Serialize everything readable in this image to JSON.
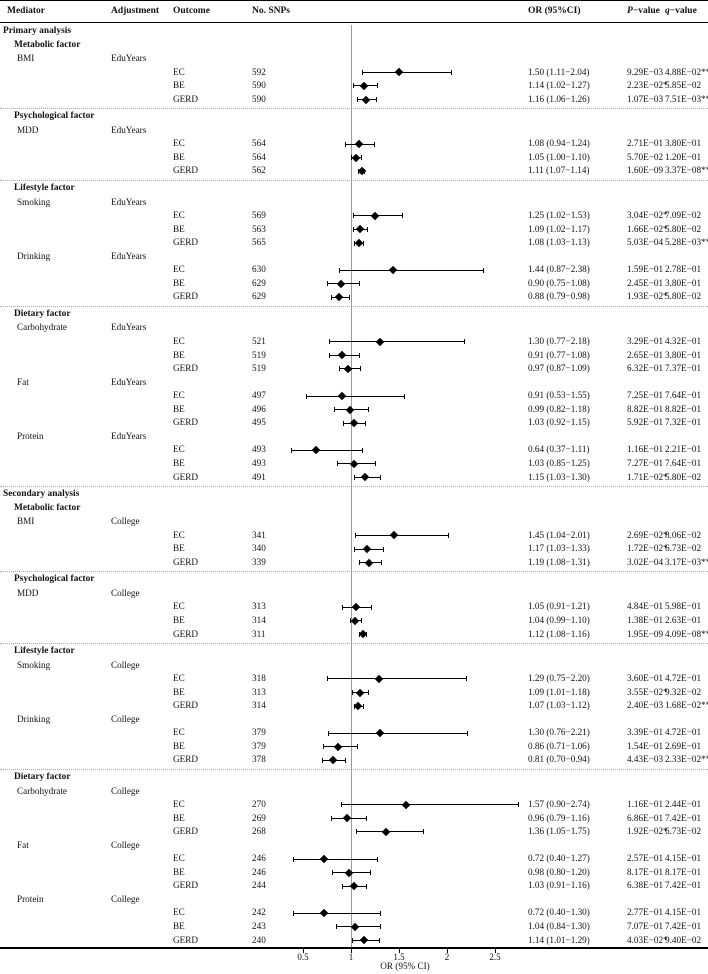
{
  "header": {
    "mediator": "Mediator",
    "adjustment": "Adjustment",
    "outcome": "Outcome",
    "snps": "No. SNPs",
    "or": "OR (95%CI)",
    "p_italic": "P",
    "p_rest": "−value",
    "q_italic": "q",
    "q_rest": "−value"
  },
  "chart_data": {
    "type": "forest",
    "xlabel": "OR (95% CI)",
    "x_ticks": [
      0.5,
      1,
      1.5,
      2,
      2.5
    ],
    "x_tick_labels": [
      "0.5",
      "1",
      "1.5",
      "2",
      "2.5"
    ],
    "xlim": [
      0.3,
      3.0
    ],
    "reference_line": 1,
    "rows": [
      {
        "type": "section",
        "label": "Primary analysis"
      },
      {
        "type": "factor",
        "label": "Metabolic factor"
      },
      {
        "type": "mediator",
        "label": "BMI",
        "adjustment": "EduYears"
      },
      {
        "type": "data",
        "outcome": "EC",
        "snps": "592",
        "est": 1.5,
        "lo": 1.11,
        "hi": 2.04,
        "or_text": "1.50 (1.11−2.04)",
        "p": "9.29E−03",
        "q": "4.88E−02**"
      },
      {
        "type": "data",
        "outcome": "BE",
        "snps": "590",
        "est": 1.14,
        "lo": 1.02,
        "hi": 1.27,
        "or_text": "1.14 (1.02−1.27)",
        "p": "2.23E−02*",
        "q": "5.85E−02"
      },
      {
        "type": "data",
        "outcome": "GERD",
        "snps": "590",
        "est": 1.16,
        "lo": 1.06,
        "hi": 1.26,
        "or_text": "1.16 (1.06−1.26)",
        "p": "1.07E−03",
        "q": "7.51E−03**"
      },
      {
        "type": "sep"
      },
      {
        "type": "factor",
        "label": "Psychological factor"
      },
      {
        "type": "mediator",
        "label": "MDD",
        "adjustment": "EduYears"
      },
      {
        "type": "data",
        "outcome": "EC",
        "snps": "564",
        "est": 1.08,
        "lo": 0.94,
        "hi": 1.24,
        "or_text": "1.08 (0.94−1.24)",
        "p": "2.71E−01",
        "q": "3.80E−01"
      },
      {
        "type": "data",
        "outcome": "BE",
        "snps": "564",
        "est": 1.05,
        "lo": 1.0,
        "hi": 1.1,
        "or_text": "1.05 (1.00−1.10)",
        "p": "5.70E−02",
        "q": "1.20E−01"
      },
      {
        "type": "data",
        "outcome": "GERD",
        "snps": "562",
        "est": 1.11,
        "lo": 1.07,
        "hi": 1.14,
        "or_text": "1.11 (1.07−1.14)",
        "p": "1.60E−09",
        "q": "3.37E−08**"
      },
      {
        "type": "sep"
      },
      {
        "type": "factor",
        "label": "Lifestyle factor"
      },
      {
        "type": "mediator",
        "label": "Smoking",
        "adjustment": "EduYears"
      },
      {
        "type": "data",
        "outcome": "EC",
        "snps": "569",
        "est": 1.25,
        "lo": 1.02,
        "hi": 1.53,
        "or_text": "1.25 (1.02−1.53)",
        "p": "3.04E−02*",
        "q": "7.09E−02"
      },
      {
        "type": "data",
        "outcome": "BE",
        "snps": "563",
        "est": 1.09,
        "lo": 1.02,
        "hi": 1.17,
        "or_text": "1.09 (1.02−1.17)",
        "p": "1.66E−02*",
        "q": "5.80E−02"
      },
      {
        "type": "data",
        "outcome": "GERD",
        "snps": "565",
        "est": 1.08,
        "lo": 1.03,
        "hi": 1.13,
        "or_text": "1.08 (1.03−1.13)",
        "p": "5.03E−04",
        "q": "5.28E−03**"
      },
      {
        "type": "mediator",
        "label": "Drinking",
        "adjustment": "EduYears"
      },
      {
        "type": "data",
        "outcome": "EC",
        "snps": "630",
        "est": 1.44,
        "lo": 0.87,
        "hi": 2.38,
        "or_text": "1.44 (0.87−2.38)",
        "p": "1.59E−01",
        "q": "2.78E−01"
      },
      {
        "type": "data",
        "outcome": "BE",
        "snps": "629",
        "est": 0.9,
        "lo": 0.75,
        "hi": 1.08,
        "or_text": "0.90 (0.75−1.08)",
        "p": "2.45E−01",
        "q": "3.80E−01"
      },
      {
        "type": "data",
        "outcome": "GERD",
        "snps": "629",
        "est": 0.88,
        "lo": 0.79,
        "hi": 0.98,
        "or_text": "0.88 (0.79−0.98)",
        "p": "1.93E−02*",
        "q": "5.80E−02"
      },
      {
        "type": "sep"
      },
      {
        "type": "factor",
        "label": "Dietary factor"
      },
      {
        "type": "mediator",
        "label": "Carbohydrate",
        "adjustment": "EduYears"
      },
      {
        "type": "data",
        "outcome": "EC",
        "snps": "521",
        "est": 1.3,
        "lo": 0.77,
        "hi": 2.18,
        "or_text": "1.30 (0.77−2.18)",
        "p": "3.29E−01",
        "q": "4.32E−01"
      },
      {
        "type": "data",
        "outcome": "BE",
        "snps": "519",
        "est": 0.91,
        "lo": 0.77,
        "hi": 1.08,
        "or_text": "0.91 (0.77−1.08)",
        "p": "2.65E−01",
        "q": "3.80E−01"
      },
      {
        "type": "data",
        "outcome": "GERD",
        "snps": "519",
        "est": 0.97,
        "lo": 0.87,
        "hi": 1.09,
        "or_text": "0.97 (0.87−1.09)",
        "p": "6.32E−01",
        "q": "7.37E−01"
      },
      {
        "type": "mediator",
        "label": "Fat",
        "adjustment": "EduYears"
      },
      {
        "type": "data",
        "outcome": "EC",
        "snps": "497",
        "est": 0.91,
        "lo": 0.53,
        "hi": 1.55,
        "or_text": "0.91 (0.53−1.55)",
        "p": "7.25E−01",
        "q": "7.64E−01"
      },
      {
        "type": "data",
        "outcome": "BE",
        "snps": "496",
        "est": 0.99,
        "lo": 0.82,
        "hi": 1.18,
        "or_text": "0.99 (0.82−1.18)",
        "p": "8.82E−01",
        "q": "8.82E−01"
      },
      {
        "type": "data",
        "outcome": "GERD",
        "snps": "495",
        "est": 1.03,
        "lo": 0.92,
        "hi": 1.15,
        "or_text": "1.03 (0.92−1.15)",
        "p": "5.92E−01",
        "q": "7.32E−01"
      },
      {
        "type": "mediator",
        "label": "Protein",
        "adjustment": "EduYears"
      },
      {
        "type": "data",
        "outcome": "EC",
        "snps": "493",
        "est": 0.64,
        "lo": 0.37,
        "hi": 1.11,
        "or_text": "0.64 (0.37−1.11)",
        "p": "1.16E−01",
        "q": "2.21E−01"
      },
      {
        "type": "data",
        "outcome": "BE",
        "snps": "493",
        "est": 1.03,
        "lo": 0.85,
        "hi": 1.25,
        "or_text": "1.03 (0.85−1.25)",
        "p": "7.27E−01",
        "q": "7.64E−01"
      },
      {
        "type": "data",
        "outcome": "GERD",
        "snps": "491",
        "est": 1.15,
        "lo": 1.03,
        "hi": 1.3,
        "or_text": "1.15 (1.03−1.30)",
        "p": "1.71E−02*",
        "q": "5.80E−02"
      },
      {
        "type": "sep"
      },
      {
        "type": "section",
        "label": "Secondary analysis"
      },
      {
        "type": "factor",
        "label": "Metabolic factor"
      },
      {
        "type": "mediator",
        "label": "BMI",
        "adjustment": "College"
      },
      {
        "type": "data",
        "outcome": "EC",
        "snps": "341",
        "est": 1.45,
        "lo": 1.04,
        "hi": 2.01,
        "or_text": "1.45 (1.04−2.01)",
        "p": "2.69E−02*",
        "q": "8.06E−02"
      },
      {
        "type": "data",
        "outcome": "BE",
        "snps": "340",
        "est": 1.17,
        "lo": 1.03,
        "hi": 1.33,
        "or_text": "1.17 (1.03−1.33)",
        "p": "1.72E−02*",
        "q": "6.73E−02"
      },
      {
        "type": "data",
        "outcome": "GERD",
        "snps": "339",
        "est": 1.19,
        "lo": 1.08,
        "hi": 1.31,
        "or_text": "1.19 (1.08−1.31)",
        "p": "3.02E−04",
        "q": "3.17E−03**"
      },
      {
        "type": "sep"
      },
      {
        "type": "factor",
        "label": "Psychological factor"
      },
      {
        "type": "mediator",
        "label": "MDD",
        "adjustment": "College"
      },
      {
        "type": "data",
        "outcome": "EC",
        "snps": "313",
        "est": 1.05,
        "lo": 0.91,
        "hi": 1.21,
        "or_text": "1.05 (0.91−1.21)",
        "p": "4.84E−01",
        "q": "5.98E−01"
      },
      {
        "type": "data",
        "outcome": "BE",
        "snps": "314",
        "est": 1.04,
        "lo": 0.99,
        "hi": 1.1,
        "or_text": "1.04 (0.99−1.10)",
        "p": "1.38E−01",
        "q": "2.63E−01"
      },
      {
        "type": "data",
        "outcome": "GERD",
        "snps": "311",
        "est": 1.12,
        "lo": 1.08,
        "hi": 1.16,
        "or_text": "1.12 (1.08−1.16)",
        "p": "1.95E−09",
        "q": "4.09E−08**"
      },
      {
        "type": "sep"
      },
      {
        "type": "factor",
        "label": "Lifestyle factor"
      },
      {
        "type": "mediator",
        "label": "Smoking",
        "adjustment": "College"
      },
      {
        "type": "data",
        "outcome": "EC",
        "snps": "318",
        "est": 1.29,
        "lo": 0.75,
        "hi": 2.2,
        "or_text": "1.29 (0.75−2.20)",
        "p": "3.60E−01",
        "q": "4.72E−01"
      },
      {
        "type": "data",
        "outcome": "BE",
        "snps": "313",
        "est": 1.09,
        "lo": 1.01,
        "hi": 1.18,
        "or_text": "1.09 (1.01−1.18)",
        "p": "3.55E−02*",
        "q": "9.32E−02"
      },
      {
        "type": "data",
        "outcome": "GERD",
        "snps": "314",
        "est": 1.07,
        "lo": 1.03,
        "hi": 1.12,
        "or_text": "1.07 (1.03−1.12)",
        "p": "2.40E−03",
        "q": "1.68E−02**"
      },
      {
        "type": "mediator",
        "label": "Drinking",
        "adjustment": "College"
      },
      {
        "type": "data",
        "outcome": "EC",
        "snps": "379",
        "est": 1.3,
        "lo": 0.76,
        "hi": 2.21,
        "or_text": "1.30 (0.76−2.21)",
        "p": "3.39E−01",
        "q": "4.72E−01"
      },
      {
        "type": "data",
        "outcome": "BE",
        "snps": "379",
        "est": 0.86,
        "lo": 0.71,
        "hi": 1.06,
        "or_text": "0.86 (0.71−1.06)",
        "p": "1.54E−01",
        "q": "2.69E−01"
      },
      {
        "type": "data",
        "outcome": "GERD",
        "snps": "378",
        "est": 0.81,
        "lo": 0.7,
        "hi": 0.94,
        "or_text": "0.81 (0.70−0.94)",
        "p": "4.43E−03",
        "q": "2.33E−02**"
      },
      {
        "type": "sep"
      },
      {
        "type": "factor",
        "label": "Dietary factor"
      },
      {
        "type": "mediator",
        "label": "Carbohydrate",
        "adjustment": "College"
      },
      {
        "type": "data",
        "outcome": "EC",
        "snps": "270",
        "est": 1.57,
        "lo": 0.9,
        "hi": 2.74,
        "or_text": "1.57 (0.90−2.74)",
        "p": "1.16E−01",
        "q": "2.44E−01"
      },
      {
        "type": "data",
        "outcome": "BE",
        "snps": "269",
        "est": 0.96,
        "lo": 0.79,
        "hi": 1.16,
        "or_text": "0.96 (0.79−1.16)",
        "p": "6.86E−01",
        "q": "7.42E−01"
      },
      {
        "type": "data",
        "outcome": "GERD",
        "snps": "268",
        "est": 1.36,
        "lo": 1.05,
        "hi": 1.75,
        "or_text": "1.36 (1.05−1.75)",
        "p": "1.92E−02*",
        "q": "6.73E−02"
      },
      {
        "type": "mediator",
        "label": "Fat",
        "adjustment": "College"
      },
      {
        "type": "data",
        "outcome": "EC",
        "snps": "246",
        "est": 0.72,
        "lo": 0.4,
        "hi": 1.27,
        "or_text": "0.72 (0.40−1.27)",
        "p": "2.57E−01",
        "q": "4.15E−01"
      },
      {
        "type": "data",
        "outcome": "BE",
        "snps": "246",
        "est": 0.98,
        "lo": 0.8,
        "hi": 1.2,
        "or_text": "0.98 (0.80−1.20)",
        "p": "8.17E−01",
        "q": "8.17E−01"
      },
      {
        "type": "data",
        "outcome": "GERD",
        "snps": "244",
        "est": 1.03,
        "lo": 0.91,
        "hi": 1.16,
        "or_text": "1.03 (0.91−1.16)",
        "p": "6.38E−01",
        "q": "7.42E−01"
      },
      {
        "type": "mediator",
        "label": "Protein",
        "adjustment": "College"
      },
      {
        "type": "data",
        "outcome": "EC",
        "snps": "242",
        "est": 0.72,
        "lo": 0.4,
        "hi": 1.3,
        "or_text": "0.72 (0.40−1.30)",
        "p": "2.77E−01",
        "q": "4.15E−01"
      },
      {
        "type": "data",
        "outcome": "BE",
        "snps": "243",
        "est": 1.04,
        "lo": 0.84,
        "hi": 1.3,
        "or_text": "1.04 (0.84−1.30)",
        "p": "7.07E−01",
        "q": "7.42E−01"
      },
      {
        "type": "data",
        "outcome": "GERD",
        "snps": "240",
        "est": 1.14,
        "lo": 1.01,
        "hi": 1.29,
        "or_text": "1.14 (1.01−1.29)",
        "p": "4.03E−02*",
        "q": "9.40E−02"
      }
    ]
  }
}
